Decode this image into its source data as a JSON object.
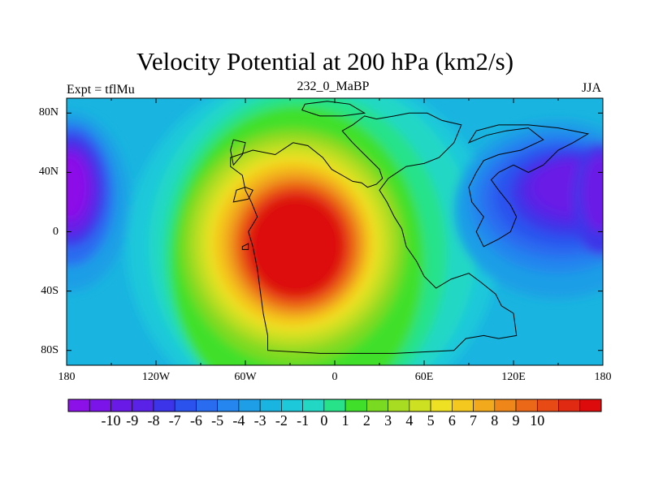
{
  "chart_data": {
    "type": "heatmap",
    "title": "Velocity Potential at 200 hPa (km2/s)",
    "left_string": "Expt = tflMu",
    "center_string": "232_0_MaBP",
    "right_string": "JJA",
    "x_ticks": [
      "180",
      "120W",
      "60W",
      "0",
      "60E",
      "120E",
      "180"
    ],
    "x_tick_values": [
      -180,
      -120,
      -60,
      0,
      60,
      120,
      180
    ],
    "y_ticks": [
      "80N",
      "40N",
      "0",
      "40S",
      "80S"
    ],
    "y_tick_values": [
      80,
      40,
      0,
      -40,
      -80
    ],
    "xlim": [
      -180,
      180
    ],
    "ylim": [
      -90,
      90
    ],
    "colorbar": {
      "levels": [
        -10,
        -9,
        -8,
        -7,
        -6,
        -5,
        -4,
        -3,
        -2,
        -1,
        0,
        1,
        2,
        3,
        4,
        5,
        6,
        7,
        8,
        9,
        10
      ],
      "labels": [
        "-10",
        "-9",
        "-8",
        "-7",
        "-6",
        "-5",
        "-4",
        "-3",
        "-2",
        "-1",
        "0",
        "1",
        "2",
        "3",
        "4",
        "5",
        "6",
        "7",
        "8",
        "9",
        "10"
      ],
      "colors": [
        "#8c10e8",
        "#7a14e8",
        "#6a1ae6",
        "#5a22e6",
        "#3c34e8",
        "#2c52ee",
        "#2a6cf0",
        "#2486ee",
        "#1e9ee6",
        "#1ab4e0",
        "#1cc8da",
        "#22d8c4",
        "#28e28a",
        "#40e02a",
        "#7ada22",
        "#a8dc22",
        "#cee022",
        "#eee022",
        "#f4c81e",
        "#f2aa1c",
        "#ee861a",
        "#ea6818",
        "#e84a16",
        "#e02a12",
        "#dd0b0b"
      ]
    },
    "field_features": [
      {
        "name": "maximum",
        "lon": -25,
        "lat": -10,
        "value": 10
      },
      {
        "name": "minimum",
        "lon": -170,
        "lat": 30,
        "value": -10
      },
      {
        "name": "minimum",
        "lon": 150,
        "lat": 20,
        "value": -10
      }
    ]
  }
}
